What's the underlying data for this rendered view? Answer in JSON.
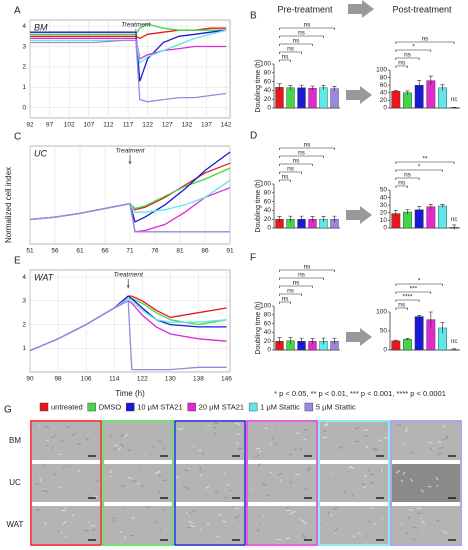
{
  "figure": {
    "panel_labels": [
      "A",
      "B",
      "C",
      "D",
      "E",
      "F",
      "G"
    ],
    "headers": [
      "Pre-treatment",
      "Post-treatment"
    ],
    "y_label": "Normalized cell index",
    "x_label": "Time (h)",
    "bar_y_label": "Doubling time (h)",
    "significance_note": "* p < 0.05, ** p < 0.01, *** p < 0.001, **** p < 0.0001",
    "legend": [
      {
        "name": "untreated",
        "color": "#e8181e"
      },
      {
        "name": "DMSO",
        "color": "#44d64a"
      },
      {
        "name": "10 µM STA21",
        "color": "#1a1ad6"
      },
      {
        "name": "20 µM STA21",
        "color": "#e02ad0"
      },
      {
        "name": "1 µM Stattic",
        "color": "#5ee8e8"
      },
      {
        "name": "5 µM Stattic",
        "color": "#9b86e0"
      }
    ],
    "image_rows": [
      "BM",
      "UC",
      "WAT"
    ]
  },
  "chart_data": [
    {
      "type": "line",
      "tag": "BM",
      "annotation": "Treatment",
      "annotation_x": 119,
      "x": [
        92,
        100,
        108,
        116,
        119,
        120,
        122,
        126,
        130,
        134,
        138,
        142
      ],
      "series": [
        {
          "values": [
            3.5,
            3.5,
            3.5,
            3.5,
            3.5,
            3.4,
            3.6,
            3.7,
            3.8,
            3.8,
            3.9,
            3.9
          ]
        },
        {
          "values": [
            3.6,
            3.6,
            3.6,
            3.6,
            3.6,
            3.9,
            4.1,
            3.9,
            3.8,
            3.8,
            3.8,
            3.8
          ]
        },
        {
          "values": [
            3.7,
            3.7,
            3.7,
            3.7,
            3.7,
            1.3,
            2.4,
            3.2,
            3.5,
            3.6,
            3.7,
            3.8
          ]
        },
        {
          "values": [
            3.4,
            3.4,
            3.4,
            3.4,
            3.4,
            2.4,
            2.6,
            2.8,
            2.9,
            3.0,
            3.0,
            3.0
          ]
        },
        {
          "values": [
            3.3,
            3.3,
            3.3,
            3.3,
            3.3,
            2.2,
            2.5,
            2.8,
            3.1,
            3.4,
            3.6,
            3.8
          ]
        },
        {
          "values": [
            3.2,
            3.2,
            3.2,
            3.3,
            3.3,
            0.4,
            0.3,
            0.4,
            0.5,
            0.5,
            0.6,
            0.7
          ]
        }
      ],
      "xlim": [
        92,
        143
      ],
      "ylim": [
        -0.5,
        4.3
      ],
      "xticks": [
        92,
        97,
        102,
        107,
        112,
        117,
        122,
        127,
        132,
        137,
        142
      ],
      "yticks": [
        0,
        1,
        2,
        3,
        4
      ],
      "grid": true
    },
    {
      "type": "bar",
      "stage": "pre",
      "categories": [
        null,
        null,
        null,
        null,
        null,
        null
      ],
      "values": [
        47,
        46,
        46,
        45,
        46,
        44
      ],
      "errors": [
        8,
        5,
        6,
        5,
        5,
        5
      ],
      "ylim": [
        0,
        100
      ],
      "yticks": [
        0,
        20,
        40,
        60,
        80,
        100
      ],
      "brackets": [
        {
          "from": 0,
          "to": 1,
          "label": "ns"
        },
        {
          "from": 0,
          "to": 2,
          "label": "ns"
        },
        {
          "from": 0,
          "to": 3,
          "label": "ns"
        },
        {
          "from": 0,
          "to": 4,
          "label": "ns"
        },
        {
          "from": 0,
          "to": 5,
          "label": "ns"
        }
      ]
    },
    {
      "type": "bar",
      "stage": "post",
      "categories": [
        null,
        null,
        null,
        null,
        null,
        null
      ],
      "values": [
        44,
        40,
        60,
        72,
        53,
        1
      ],
      "errors": [
        2,
        5,
        12,
        12,
        8,
        1
      ],
      "ylim": [
        0,
        100
      ],
      "yticks": [
        0,
        20,
        40,
        60,
        80,
        100
      ],
      "brackets": [
        {
          "from": 0,
          "to": 1,
          "label": "ns"
        },
        {
          "from": 0,
          "to": 2,
          "label": "ns"
        },
        {
          "from": 0,
          "to": 3,
          "label": "*"
        },
        {
          "from": 0,
          "to": 5,
          "label": "ns"
        }
      ],
      "annotations": [
        {
          "category": 5,
          "text": "nc"
        }
      ]
    },
    {
      "type": "line",
      "tag": "UC",
      "annotation": "Treatment",
      "annotation_x": 71,
      "x": [
        51,
        56,
        61,
        66,
        71,
        72,
        74,
        78,
        82,
        86,
        91
      ],
      "series": [
        {
          "values": [
            2,
            2.2,
            2.5,
            2.9,
            3.3,
            2.8,
            3.0,
            3.8,
            4.8,
            5.8,
            6.6
          ]
        },
        {
          "values": [
            2,
            2.2,
            2.5,
            2.9,
            3.3,
            2.9,
            3.1,
            3.9,
            4.7,
            5.3,
            6.2
          ]
        },
        {
          "values": [
            2,
            2.2,
            2.5,
            2.9,
            3.3,
            1.8,
            2.2,
            3.2,
            4.5,
            6.0,
            7.5
          ]
        },
        {
          "values": [
            2,
            2.2,
            2.5,
            2.9,
            3.3,
            1.0,
            1.1,
            1.6,
            2.6,
            3.8,
            4.6
          ]
        },
        {
          "values": [
            2,
            2.2,
            2.5,
            2.9,
            3.3,
            2.6,
            2.6,
            2.8,
            3.2,
            3.8,
            5.2
          ]
        },
        {
          "values": [
            2,
            2.2,
            2.5,
            2.9,
            3.3,
            1.0,
            1.0,
            1.0,
            1.0,
            1.0,
            1.0
          ]
        }
      ],
      "xlim": [
        51,
        91
      ],
      "ylim": [
        0,
        8
      ],
      "xticks": [
        51,
        56,
        61,
        66,
        71,
        76,
        81,
        86,
        91
      ],
      "grid": true
    },
    {
      "type": "bar",
      "stage": "pre",
      "categories": [
        null,
        null,
        null,
        null,
        null,
        null
      ],
      "values": [
        20,
        20,
        20,
        20,
        20,
        20
      ],
      "errors": [
        6,
        7,
        7,
        6,
        6,
        7
      ],
      "ylim": [
        0,
        100
      ],
      "yticks": [
        0,
        20,
        40,
        60,
        80,
        100
      ],
      "brackets": [
        {
          "from": 0,
          "to": 1,
          "label": "ns"
        },
        {
          "from": 0,
          "to": 2,
          "label": "ns"
        },
        {
          "from": 0,
          "to": 3,
          "label": "ns"
        },
        {
          "from": 0,
          "to": 4,
          "label": "ns"
        },
        {
          "from": 0,
          "to": 5,
          "label": "ns"
        }
      ]
    },
    {
      "type": "bar",
      "stage": "post",
      "categories": [
        null,
        null,
        null,
        null,
        null,
        null
      ],
      "values": [
        19,
        21,
        24,
        28,
        29,
        1
      ],
      "errors": [
        4,
        3,
        4,
        3,
        2,
        3
      ],
      "ylim": [
        0,
        50
      ],
      "yticks": [
        0,
        10,
        20,
        30,
        40,
        50
      ],
      "brackets": [
        {
          "from": 0,
          "to": 1,
          "label": "ns"
        },
        {
          "from": 0,
          "to": 2,
          "label": "ns"
        },
        {
          "from": 0,
          "to": 4,
          "label": "*"
        },
        {
          "from": 0,
          "to": 5,
          "label": "**"
        }
      ],
      "annotations": [
        {
          "category": 5,
          "text": "nc"
        }
      ]
    },
    {
      "type": "line",
      "tag": "WAT",
      "annotation": "Treatment",
      "annotation_x": 118,
      "x": [
        90,
        98,
        106,
        114,
        118,
        119,
        122,
        126,
        130,
        138,
        146
      ],
      "series": [
        {
          "values": [
            0.9,
            1.4,
            2.0,
            2.7,
            3.2,
            3.2,
            3.0,
            2.6,
            2.3,
            2.5,
            2.7
          ]
        },
        {
          "values": [
            0.9,
            1.4,
            2.0,
            2.7,
            3.1,
            3.1,
            2.9,
            2.5,
            2.2,
            2.0,
            2.2
          ]
        },
        {
          "values": [
            0.9,
            1.4,
            2.0,
            2.7,
            3.2,
            3.1,
            2.7,
            2.2,
            2.0,
            1.9,
            1.9
          ]
        },
        {
          "values": [
            0.9,
            1.4,
            2.0,
            2.7,
            3.0,
            2.9,
            2.4,
            1.9,
            1.6,
            1.4,
            1.3
          ]
        },
        {
          "values": [
            0.9,
            1.4,
            2.0,
            2.7,
            3.1,
            3.0,
            2.6,
            2.2,
            2.1,
            2.1,
            2.2
          ]
        },
        {
          "values": [
            0.9,
            1.4,
            2.0,
            2.7,
            3.0,
            0.1,
            0.1,
            0.1,
            0.1,
            0.2,
            0.2
          ]
        }
      ],
      "xlim": [
        90,
        147
      ],
      "ylim": [
        0,
        4.3
      ],
      "xticks": [
        90,
        98,
        106,
        114,
        122,
        130,
        138,
        146
      ],
      "yticks": [
        1,
        2,
        3,
        4
      ],
      "grid": true
    },
    {
      "type": "bar",
      "stage": "pre",
      "categories": [
        null,
        null,
        null,
        null,
        null,
        null
      ],
      "values": [
        20,
        21,
        20,
        20,
        20,
        20
      ],
      "errors": [
        8,
        8,
        7,
        6,
        7,
        7
      ],
      "ylim": [
        0,
        100
      ],
      "yticks": [
        0,
        20,
        40,
        60,
        80,
        100
      ],
      "brackets": [
        {
          "from": 0,
          "to": 1,
          "label": "ns"
        },
        {
          "from": 0,
          "to": 2,
          "label": "ns"
        },
        {
          "from": 0,
          "to": 3,
          "label": "ns"
        },
        {
          "from": 0,
          "to": 4,
          "label": "ns"
        },
        {
          "from": 0,
          "to": 5,
          "label": "ns"
        }
      ]
    },
    {
      "type": "bar",
      "stage": "post",
      "categories": [
        null,
        null,
        null,
        null,
        null,
        null
      ],
      "values": [
        24,
        28,
        88,
        80,
        58,
        1
      ],
      "errors": [
        2,
        2,
        3,
        20,
        15,
        2
      ],
      "ylim": [
        0,
        100
      ],
      "yticks": [
        0,
        50,
        100
      ],
      "brackets": [
        {
          "from": 0,
          "to": 1,
          "label": "ns"
        },
        {
          "from": 0,
          "to": 2,
          "label": "****"
        },
        {
          "from": 0,
          "to": 3,
          "label": "***"
        },
        {
          "from": 0,
          "to": 4,
          "label": "*"
        }
      ],
      "annotations": [
        {
          "category": 5,
          "text": "nc"
        }
      ]
    }
  ]
}
